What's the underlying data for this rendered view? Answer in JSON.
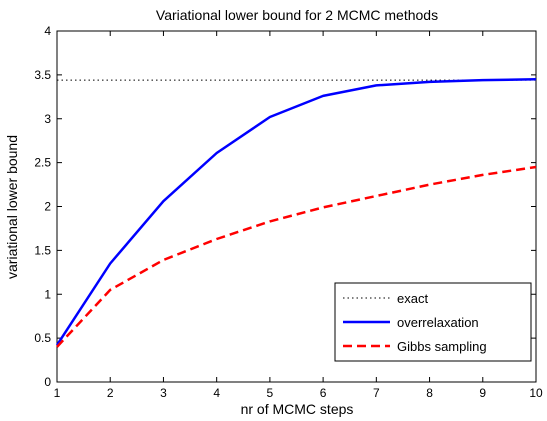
{
  "chart_data": {
    "type": "line",
    "title": "Variational lower bound for 2 MCMC methods",
    "xlabel": "nr of MCMC steps",
    "ylabel": "variational lower bound",
    "xlim": [
      1,
      10
    ],
    "ylim": [
      0,
      4
    ],
    "xticks": [
      "1",
      "2",
      "3",
      "4",
      "5",
      "6",
      "7",
      "8",
      "9",
      "10"
    ],
    "yticks": [
      "0",
      "0.5",
      "1",
      "1.5",
      "2",
      "2.5",
      "3",
      "3.5",
      "4"
    ],
    "grid": false,
    "legend_position": "bottom-right",
    "x": [
      1,
      2,
      3,
      4,
      5,
      6,
      7,
      8,
      9,
      10
    ],
    "series": [
      {
        "name": "exact",
        "style": "dotted",
        "color": "#000000",
        "values": [
          3.44,
          3.44,
          3.44,
          3.44,
          3.44,
          3.44,
          3.44,
          3.44,
          3.44,
          3.44
        ]
      },
      {
        "name": "overrelaxation",
        "style": "solid",
        "color": "#0000ff",
        "values": [
          0.42,
          1.35,
          2.06,
          2.61,
          3.02,
          3.26,
          3.38,
          3.42,
          3.44,
          3.45
        ]
      },
      {
        "name": "Gibbs sampling",
        "style": "dashed",
        "color": "#ff0000",
        "values": [
          0.4,
          1.05,
          1.39,
          1.63,
          1.83,
          1.99,
          2.12,
          2.25,
          2.36,
          2.45
        ]
      }
    ]
  }
}
